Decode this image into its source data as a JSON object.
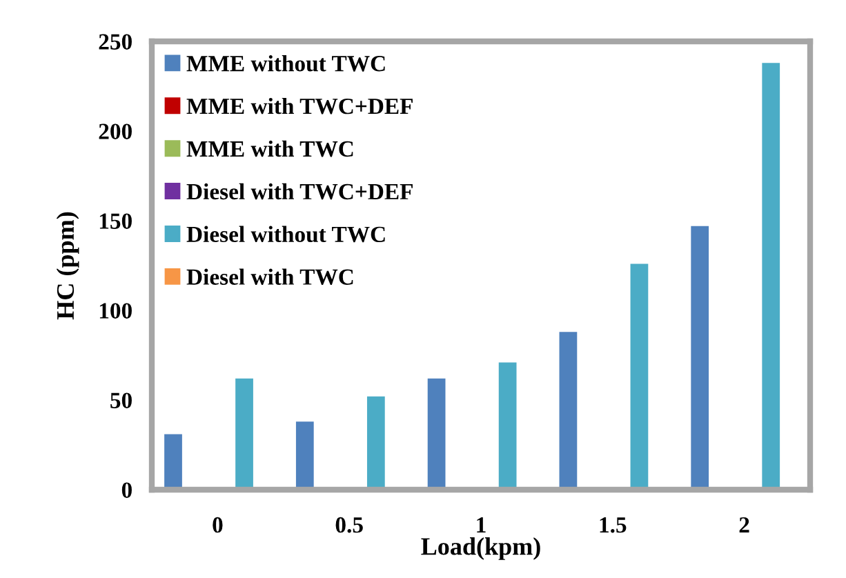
{
  "chart_data": {
    "type": "bar",
    "xlabel": "Load(kpm)",
    "ylabel": "HC (ppm)",
    "categories": [
      "0",
      "0.5",
      "1",
      "1.5",
      "2"
    ],
    "series": [
      {
        "name": "MME without TWC",
        "color": "#4f81bd",
        "values": [
          31,
          38,
          62,
          88,
          147
        ]
      },
      {
        "name": "MME with TWC+DEF",
        "color": "#c00000",
        "values": [
          null,
          null,
          null,
          null,
          null
        ]
      },
      {
        "name": "MME with TWC",
        "color": "#9bbb59",
        "values": [
          null,
          null,
          null,
          null,
          null
        ]
      },
      {
        "name": "Diesel with TWC+DEF",
        "color": "#7030a0",
        "values": [
          null,
          null,
          null,
          null,
          null
        ]
      },
      {
        "name": "Diesel without TWC",
        "color": "#4bacc6",
        "values": [
          62,
          52,
          71,
          126,
          238
        ]
      },
      {
        "name": "Diesel with TWC",
        "color": "#f79646",
        "values": [
          null,
          null,
          null,
          null,
          null
        ]
      }
    ],
    "ylim": [
      0,
      250
    ],
    "yticks": [
      0,
      50,
      100,
      150,
      200,
      250
    ],
    "grid": false,
    "legend": "top left"
  }
}
